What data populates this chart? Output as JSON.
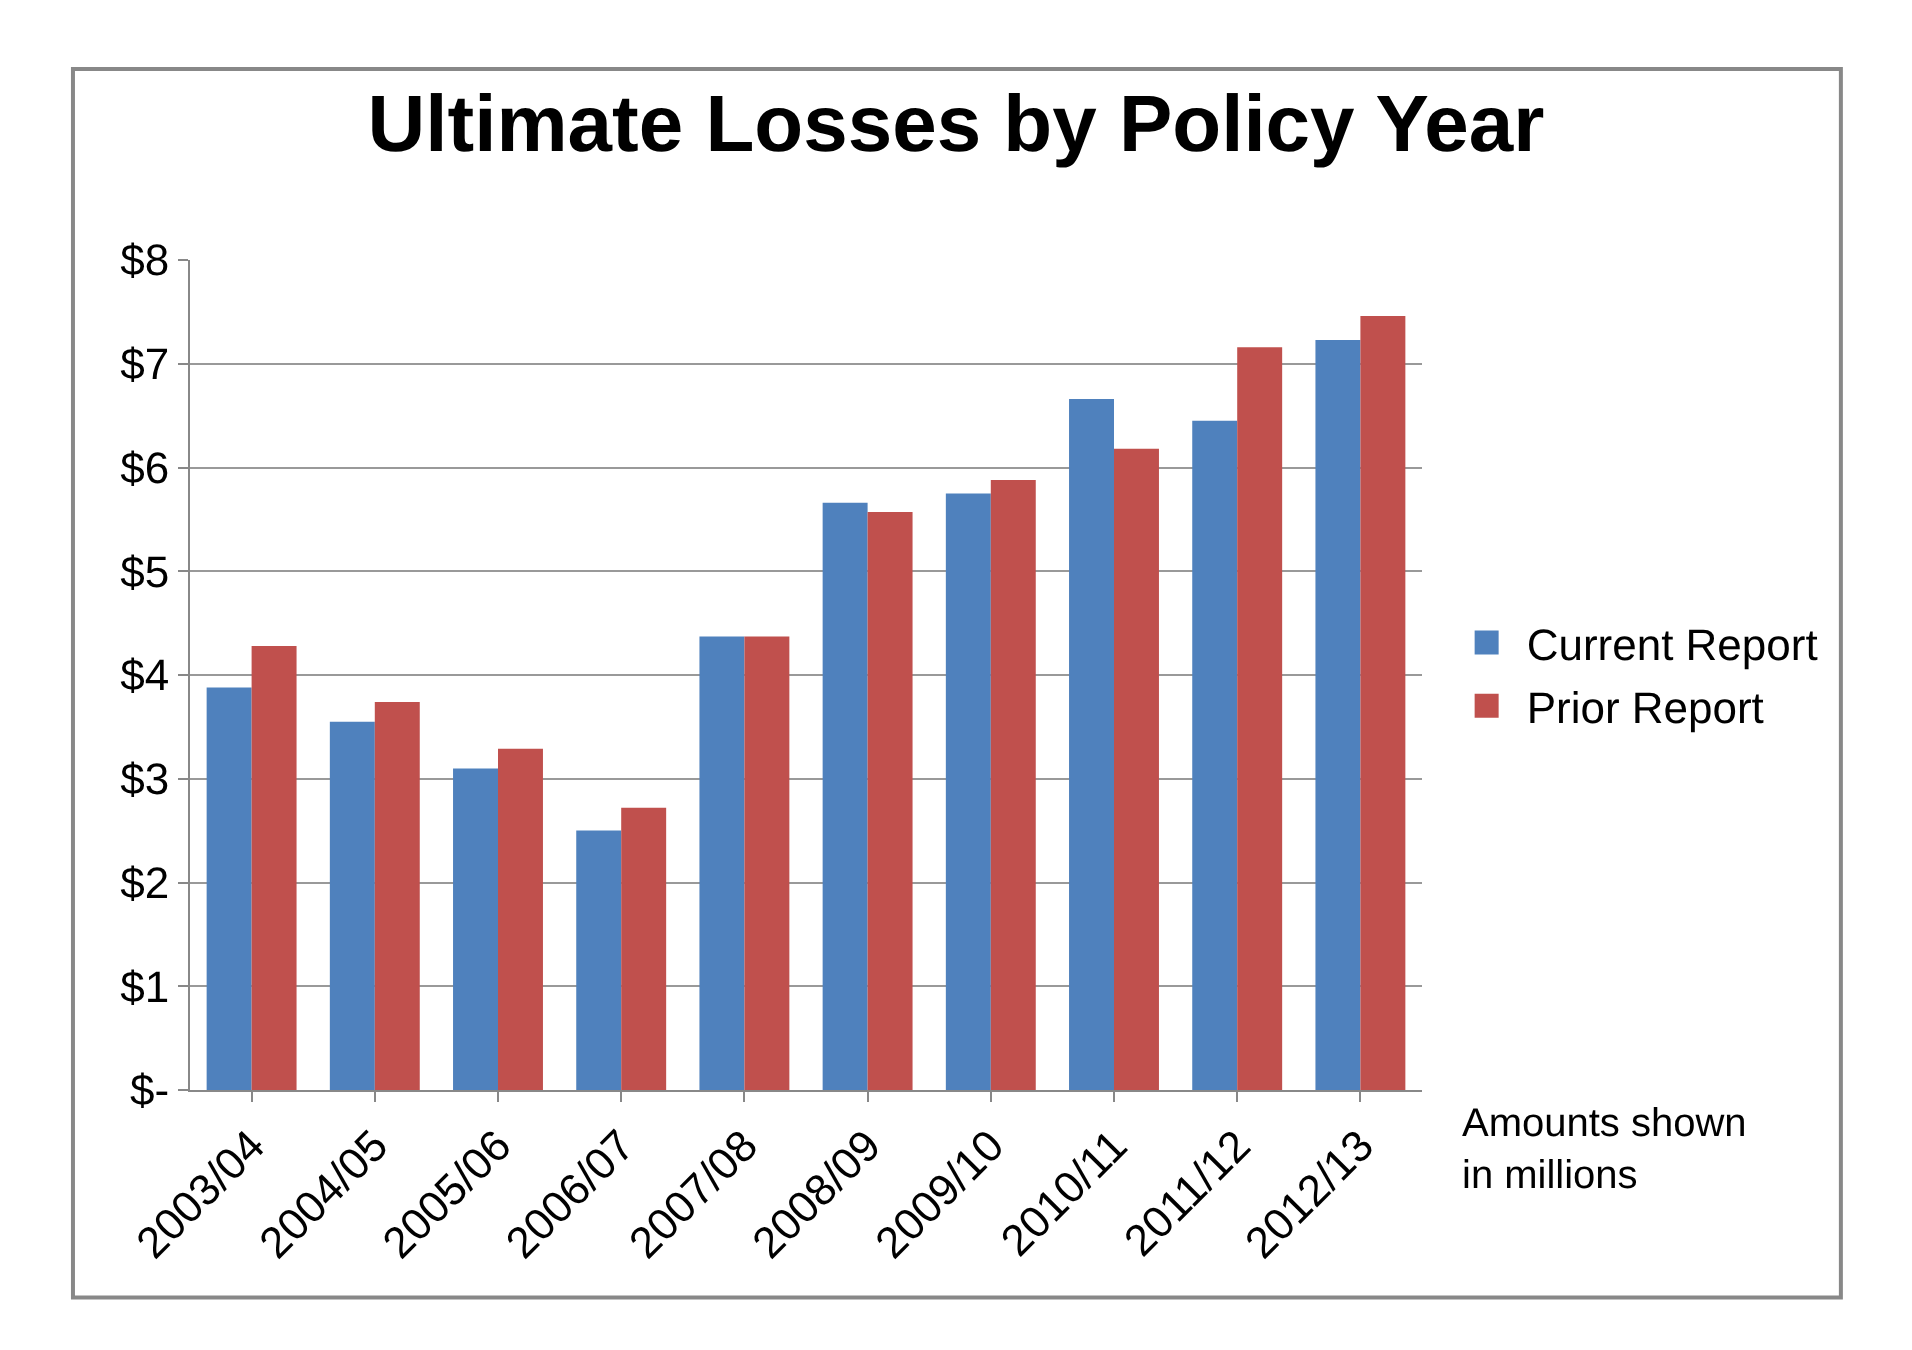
{
  "chart_data": {
    "type": "bar",
    "title": "Ultimate Losses by Policy Year",
    "categories": [
      "2003/04",
      "2004/05",
      "2005/06",
      "2006/07",
      "2007/08",
      "2008/09",
      "2009/10",
      "2010/11",
      "2011/12",
      "2012/13"
    ],
    "series": [
      {
        "name": "Current Report",
        "color": "#4f81bd",
        "values": [
          3.88,
          3.55,
          3.1,
          2.5,
          4.37,
          5.66,
          5.75,
          6.66,
          6.45,
          7.23
        ]
      },
      {
        "name": "Prior Report",
        "color": "#c0504d",
        "values": [
          4.28,
          3.74,
          3.29,
          2.72,
          4.37,
          5.57,
          5.88,
          6.18,
          7.16,
          7.46
        ]
      }
    ],
    "ylim": [
      0,
      8
    ],
    "yticks": [
      {
        "value": 0,
        "label": "$-"
      },
      {
        "value": 1,
        "label": "$1"
      },
      {
        "value": 2,
        "label": "$2"
      },
      {
        "value": 3,
        "label": "$3"
      },
      {
        "value": 4,
        "label": "$4"
      },
      {
        "value": 5,
        "label": "$5"
      },
      {
        "value": 6,
        "label": "$6"
      },
      {
        "value": 7,
        "label": "$7"
      },
      {
        "value": 8,
        "label": "$8"
      }
    ],
    "grid": "y",
    "legend": "right",
    "annotations": [
      "Amounts shown\nin millions"
    ]
  }
}
